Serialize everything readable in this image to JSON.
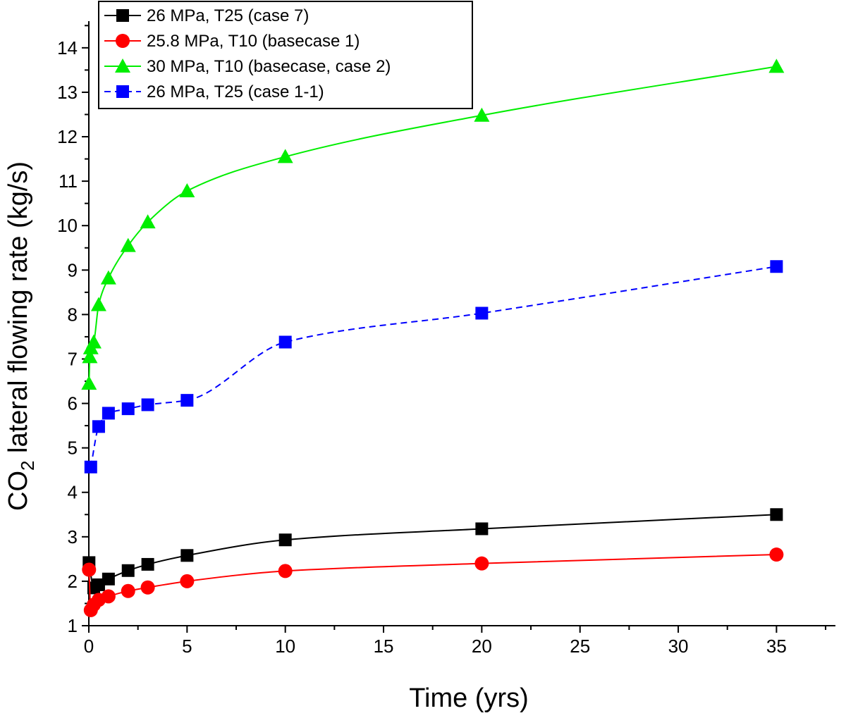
{
  "chart_data": {
    "type": "line",
    "xlabel": "Time (yrs)",
    "ylabel_main": "CO",
    "ylabel_sub": "2",
    "ylabel_rest": " lateral flowing rate (kg/s)",
    "xlim": [
      0,
      38
    ],
    "ylim": [
      1,
      14.6
    ],
    "xticks": [
      0,
      5,
      10,
      15,
      20,
      25,
      30,
      35
    ],
    "yticks": [
      1,
      2,
      3,
      4,
      5,
      6,
      7,
      8,
      9,
      10,
      11,
      12,
      13,
      14
    ],
    "x_tick_labels": [
      "0",
      "5",
      "10",
      "15",
      "20",
      "25",
      "30",
      "35"
    ],
    "y_tick_labels": [
      "1",
      "2",
      "3",
      "4",
      "5",
      "6",
      "7",
      "8",
      "9",
      "10",
      "11",
      "12",
      "13",
      "14"
    ],
    "legend_position": "top-left",
    "series": [
      {
        "name": "26 MPa, T25 (case 7)",
        "color": "#000000",
        "marker": "square",
        "line": "solid",
        "x": [
          0.01,
          0.25,
          0.5,
          1,
          2,
          3,
          5,
          10,
          20,
          35
        ],
        "y": [
          2.42,
          1.85,
          1.92,
          2.05,
          2.24,
          2.38,
          2.58,
          2.93,
          3.18,
          3.5
        ]
      },
      {
        "name": "25.8 MPa, T10 (basecase 1)",
        "color": "#ff0000",
        "marker": "circle",
        "line": "solid",
        "x": [
          0.01,
          0.1,
          0.25,
          0.5,
          1,
          2,
          3,
          5,
          10,
          20,
          35
        ],
        "y": [
          2.26,
          1.35,
          1.47,
          1.58,
          1.66,
          1.78,
          1.86,
          2.0,
          2.23,
          2.4,
          2.6
        ]
      },
      {
        "name": "30 MPa, T10 (basecase, case 2)",
        "color": "#00ee00",
        "marker": "triangle",
        "line": "solid",
        "x": [
          0.01,
          0.05,
          0.1,
          0.25,
          0.5,
          1,
          2,
          3,
          5,
          10,
          20,
          35
        ],
        "y": [
          6.45,
          7.05,
          7.25,
          7.38,
          8.22,
          8.82,
          9.55,
          10.08,
          10.78,
          11.55,
          12.48,
          13.58
        ]
      },
      {
        "name": "26 MPa, T25 (case 1-1)",
        "color": "#0000ff",
        "marker": "square",
        "line": "dashed",
        "x": [
          0.1,
          0.5,
          1,
          2,
          3,
          5,
          10,
          20,
          35
        ],
        "y": [
          4.57,
          5.48,
          5.78,
          5.88,
          5.97,
          6.07,
          7.38,
          8.03,
          9.08
        ]
      }
    ]
  }
}
